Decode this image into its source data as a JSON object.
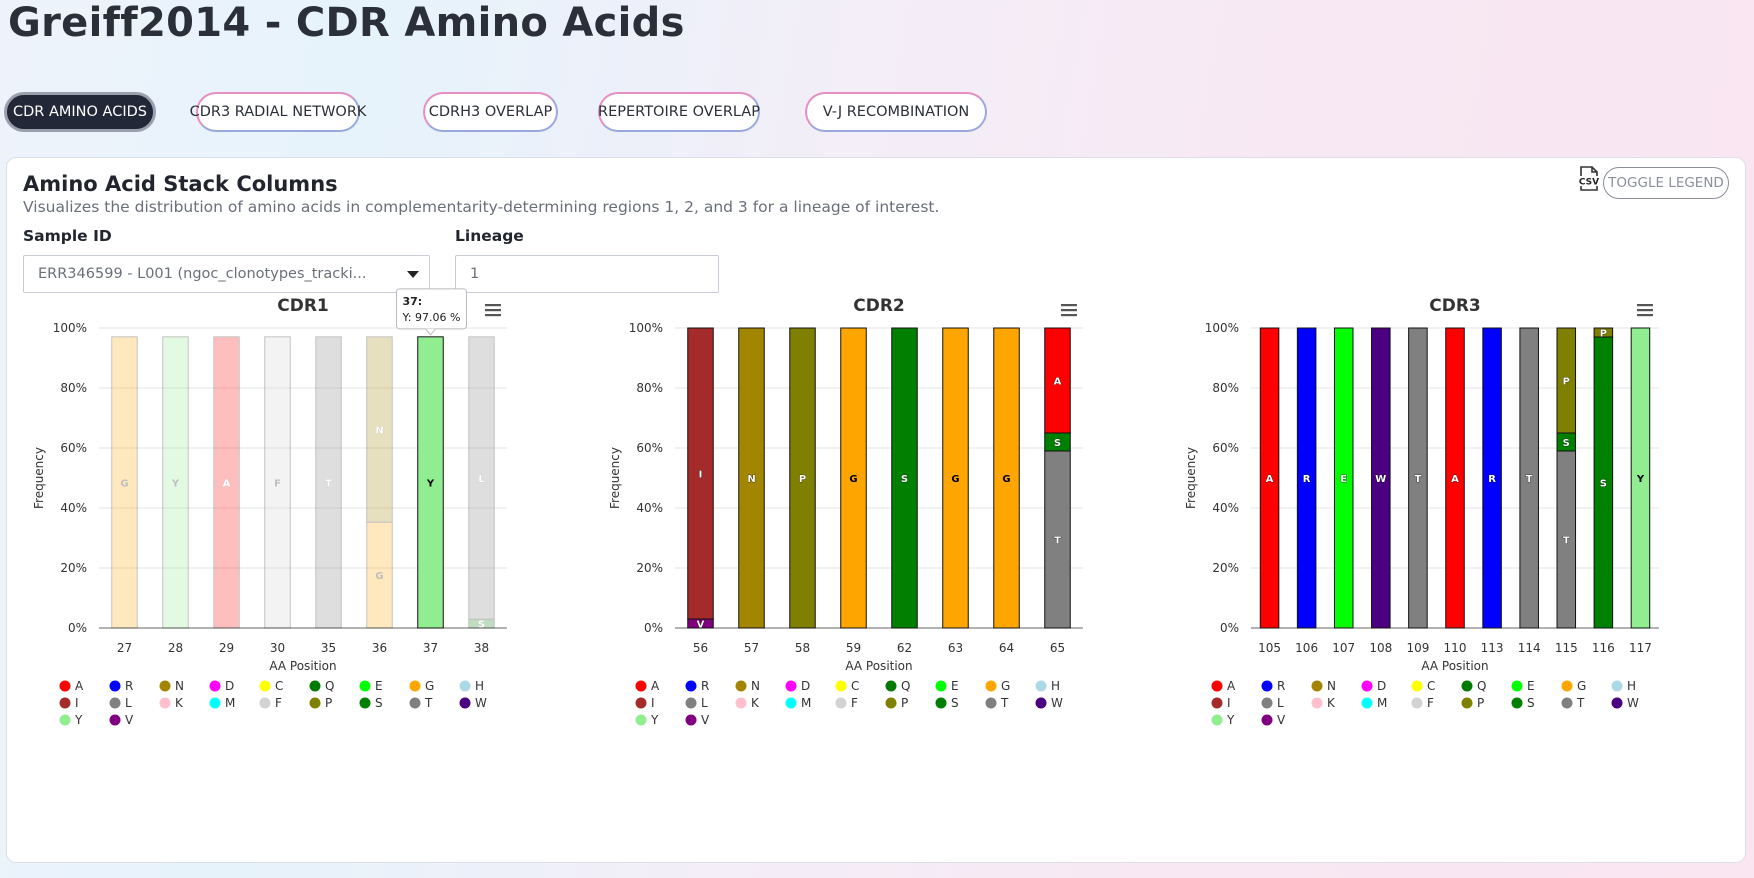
{
  "page": {
    "title": "Greiff2014 - CDR Amino Acids"
  },
  "tabs": [
    {
      "label": "CDR AMINO ACIDS",
      "active": true
    },
    {
      "label": "CDR3 RADIAL NETWORK"
    },
    {
      "label": "CDRH3 OVERLAP"
    },
    {
      "label": "REPERTOIRE OVERLAP"
    },
    {
      "label": "V-J RECOMBINATION"
    }
  ],
  "card": {
    "title": "Amino Acid Stack Columns",
    "subtitle": "Visualizes the distribution of amino acids in complementarity-determining regions 1, 2, and 3 for a lineage of interest.",
    "csv_icon": "csv-file-icon",
    "toggle_legend_label": "TOGGLE LEGEND"
  },
  "filters": {
    "sample_label": "Sample ID",
    "sample_value": "ERR346599 - L001 (ngoc_clonotypes_tracki...",
    "lineage_label": "Lineage",
    "lineage_value": "1"
  },
  "amino_acid_colors": {
    "A": "#ff0000",
    "R": "#0000ff",
    "N": "#a38600",
    "D": "#ff00ff",
    "C": "#ffff00",
    "Q": "#007a00",
    "E": "#00ff00",
    "G": "#ffa500",
    "H": "#add8e6",
    "I": "#a52a2a",
    "L": "#808080",
    "K": "#ffc0cb",
    "M": "#00ffff",
    "F": "#d3d3d3",
    "P": "#808000",
    "S": "#008000",
    "T": "#808080",
    "W": "#4b0082",
    "Y": "#90ee90",
    "V": "#800080"
  },
  "legend_order": [
    "A",
    "R",
    "N",
    "D",
    "C",
    "Q",
    "E",
    "G",
    "H",
    "I",
    "L",
    "K",
    "M",
    "F",
    "P",
    "S",
    "T",
    "W",
    "Y",
    "V"
  ],
  "chart_data": [
    {
      "type": "bar",
      "title": "CDR1",
      "xlabel": "AA Position",
      "ylabel": "Frequency",
      "ylim": [
        0,
        100
      ],
      "yticks": [
        "0%",
        "20%",
        "40%",
        "60%",
        "80%",
        "100%"
      ],
      "menu_icon": "hamburger-menu-icon",
      "categories": [
        "27",
        "28",
        "29",
        "30",
        "35",
        "36",
        "37",
        "38"
      ],
      "stacks": [
        [
          {
            "aa": "G",
            "value": 97.06
          }
        ],
        [
          {
            "aa": "Y",
            "value": 97.06
          }
        ],
        [
          {
            "aa": "A",
            "value": 97.06
          }
        ],
        [
          {
            "aa": "F",
            "value": 97.06
          }
        ],
        [
          {
            "aa": "T",
            "value": 97.06
          }
        ],
        [
          {
            "aa": "G",
            "value": 35.3
          },
          {
            "aa": "N",
            "value": 61.76
          }
        ],
        [
          {
            "aa": "Y",
            "value": 97.06
          }
        ],
        [
          {
            "aa": "S",
            "value": 2.94
          },
          {
            "aa": "L",
            "value": 94.12
          }
        ]
      ],
      "highlight_index": 6,
      "tooltip": {
        "title": "37:",
        "text": "Y: 97.06 %"
      }
    },
    {
      "type": "bar",
      "title": "CDR2",
      "xlabel": "AA Position",
      "ylabel": "Frequency",
      "ylim": [
        0,
        100
      ],
      "yticks": [
        "0%",
        "20%",
        "40%",
        "60%",
        "80%",
        "100%"
      ],
      "menu_icon": "hamburger-menu-icon",
      "categories": [
        "56",
        "57",
        "58",
        "59",
        "62",
        "63",
        "64",
        "65"
      ],
      "stacks": [
        [
          {
            "aa": "V",
            "value": 3
          },
          {
            "aa": "I",
            "value": 97
          }
        ],
        [
          {
            "aa": "N",
            "value": 100
          }
        ],
        [
          {
            "aa": "P",
            "value": 100
          }
        ],
        [
          {
            "aa": "G",
            "value": 100
          }
        ],
        [
          {
            "aa": "S",
            "value": 100
          }
        ],
        [
          {
            "aa": "G",
            "value": 100
          }
        ],
        [
          {
            "aa": "G",
            "value": 100
          }
        ],
        [
          {
            "aa": "T",
            "value": 59
          },
          {
            "aa": "S",
            "value": 6
          },
          {
            "aa": "A",
            "value": 35
          }
        ]
      ]
    },
    {
      "type": "bar",
      "title": "CDR3",
      "xlabel": "AA Position",
      "ylabel": "Frequency",
      "ylim": [
        0,
        100
      ],
      "yticks": [
        "0%",
        "20%",
        "40%",
        "60%",
        "80%",
        "100%"
      ],
      "menu_icon": "hamburger-menu-icon",
      "categories": [
        "105",
        "106",
        "107",
        "108",
        "109",
        "110",
        "113",
        "114",
        "115",
        "116",
        "117"
      ],
      "stacks": [
        [
          {
            "aa": "A",
            "value": 100
          }
        ],
        [
          {
            "aa": "R",
            "value": 100
          }
        ],
        [
          {
            "aa": "E",
            "value": 100
          }
        ],
        [
          {
            "aa": "W",
            "value": 100
          }
        ],
        [
          {
            "aa": "T",
            "value": 100
          }
        ],
        [
          {
            "aa": "A",
            "value": 100
          }
        ],
        [
          {
            "aa": "R",
            "value": 100
          }
        ],
        [
          {
            "aa": "T",
            "value": 100
          }
        ],
        [
          {
            "aa": "T",
            "value": 59
          },
          {
            "aa": "S",
            "value": 6
          },
          {
            "aa": "P",
            "value": 35
          }
        ],
        [
          {
            "aa": "S",
            "value": 97
          },
          {
            "aa": "P",
            "value": 3
          }
        ],
        [
          {
            "aa": "Y",
            "value": 100
          }
        ]
      ]
    }
  ]
}
